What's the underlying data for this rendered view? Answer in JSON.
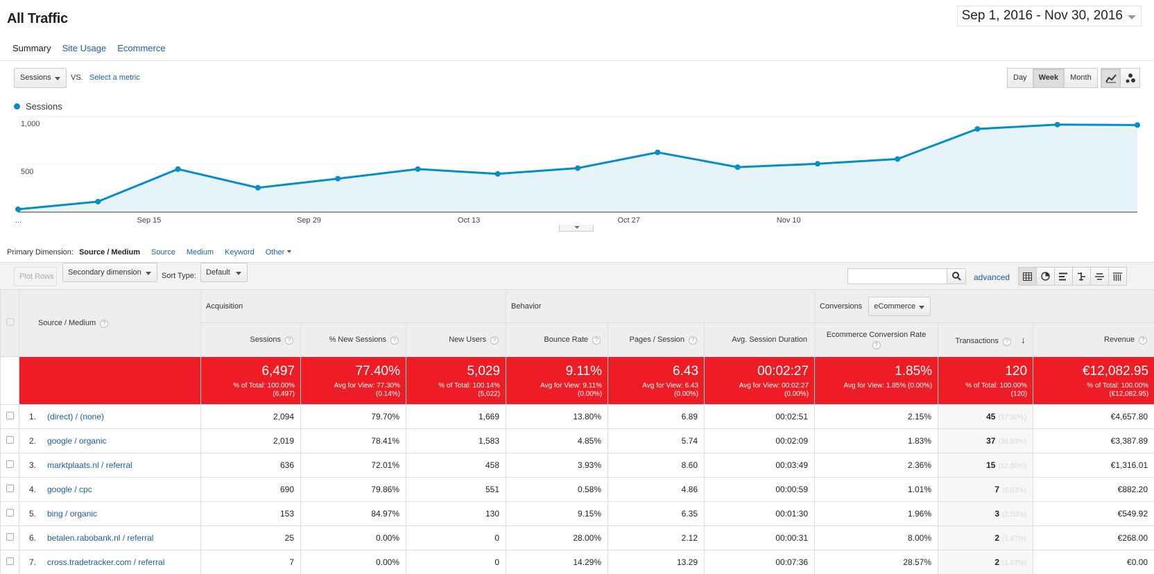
{
  "page": {
    "title": "All Traffic",
    "date_range": "Sep 1, 2016 - Nov 30, 2016"
  },
  "subtabs": [
    "Summary",
    "Site Usage",
    "Ecommerce"
  ],
  "chart_controls": {
    "metric": "Sessions",
    "vs": "VS.",
    "select_metric": "Select a metric",
    "time_buttons": [
      "Day",
      "Week",
      "Month"
    ],
    "active_time": "Week",
    "view_icons": [
      "line-chart-icon",
      "motion-chart-icon"
    ]
  },
  "chart_data": {
    "type": "area",
    "series": [
      {
        "name": "Sessions",
        "color": "#058dc7",
        "values": [
          30,
          110,
          450,
          255,
          350,
          450,
          400,
          460,
          625,
          470,
          505,
          555,
          870,
          915,
          910
        ]
      }
    ],
    "y_ticks": [
      "1,000",
      "500"
    ],
    "ylim": [
      0,
      1000
    ],
    "x_ticks": [
      "...",
      "Sep 15",
      "Sep 29",
      "Oct 13",
      "Oct 27",
      "Nov 10"
    ],
    "legend": "top-left",
    "grid": true
  },
  "primary_dimension": {
    "label": "Primary Dimension:",
    "current": "Source / Medium",
    "options": [
      "Source",
      "Medium",
      "Keyword"
    ],
    "other": "Other"
  },
  "toolbar": {
    "plot_rows": "Plot Rows",
    "secondary_dimension": "Secondary dimension",
    "sort_type_label": "Sort Type:",
    "sort_type": "Default",
    "search_placeholder": "",
    "advanced": "advanced",
    "table_view_icons": [
      "data-table-icon",
      "pie-chart-icon",
      "performance-icon",
      "comparison-icon",
      "term-cloud-icon",
      "pivot-icon"
    ]
  },
  "table": {
    "groups": {
      "dimension": "Source / Medium",
      "acquisition": "Acquisition",
      "behavior": "Behavior",
      "conversions": "Conversions",
      "conversions_select": "eCommerce"
    },
    "columns": [
      "Sessions",
      "% New Sessions",
      "New Users",
      "Bounce Rate",
      "Pages / Session",
      "Avg. Session Duration",
      "Ecommerce Conversion Rate",
      "Transactions",
      "Revenue"
    ],
    "totals": [
      {
        "value": "6,497",
        "sub1": "% of Total: 100.00%",
        "sub2": "(6,497)"
      },
      {
        "value": "77.40%",
        "sub1": "Avg for View: 77.30%",
        "sub2": "(0.14%)"
      },
      {
        "value": "5,029",
        "sub1": "% of Total: 100.14%",
        "sub2": "(5,022)"
      },
      {
        "value": "9.11%",
        "sub1": "Avg for View: 9.11%",
        "sub2": "(0.00%)"
      },
      {
        "value": "6.43",
        "sub1": "Avg for View: 6.43",
        "sub2": "(0.00%)"
      },
      {
        "value": "00:02:27",
        "sub1": "Avg for View: 00:02:27",
        "sub2": "(0.00%)"
      },
      {
        "value": "1.85%",
        "sub1": "Avg for View: 1.85% (0.00%)",
        "sub2": ""
      },
      {
        "value": "120",
        "sub1": "% of Total: 100.00%",
        "sub2": "(120)"
      },
      {
        "value": "€12,082.95",
        "sub1": "% of Total: 100.00%",
        "sub2": "(€12,082.95)"
      }
    ],
    "rows": [
      {
        "idx": "1.",
        "source": "(direct) / (none)",
        "sessions": "2,094",
        "new_sess": "79.70%",
        "new_users": "1,669",
        "bounce": "13.80%",
        "pages": "6.89",
        "duration": "00:02:51",
        "ecr": "2.15%",
        "tx": "45",
        "tx_pct": "(37.50%)",
        "revenue": "€4,657.80"
      },
      {
        "idx": "2.",
        "source": "google / organic",
        "sessions": "2,019",
        "new_sess": "78.41%",
        "new_users": "1,583",
        "bounce": "4.85%",
        "pages": "5.74",
        "duration": "00:02:09",
        "ecr": "1.83%",
        "tx": "37",
        "tx_pct": "(30.83%)",
        "revenue": "€3,387.89"
      },
      {
        "idx": "3.",
        "source": "marktplaats.nl / referral",
        "sessions": "636",
        "new_sess": "72.01%",
        "new_users": "458",
        "bounce": "3.93%",
        "pages": "8.60",
        "duration": "00:03:49",
        "ecr": "2.36%",
        "tx": "15",
        "tx_pct": "(12.50%)",
        "revenue": "€1,316.01"
      },
      {
        "idx": "4.",
        "source": "google / cpc",
        "sessions": "690",
        "new_sess": "79.86%",
        "new_users": "551",
        "bounce": "0.58%",
        "pages": "4.86",
        "duration": "00:00:59",
        "ecr": "1.01%",
        "tx": "7",
        "tx_pct": "(5.83%)",
        "revenue": "€882.20"
      },
      {
        "idx": "5.",
        "source": "bing / organic",
        "sessions": "153",
        "new_sess": "84.97%",
        "new_users": "130",
        "bounce": "9.15%",
        "pages": "6.35",
        "duration": "00:01:30",
        "ecr": "1.96%",
        "tx": "3",
        "tx_pct": "(2.50%)",
        "revenue": "€549.92"
      },
      {
        "idx": "6.",
        "source": "betalen.rabobank.nl / referral",
        "sessions": "25",
        "new_sess": "0.00%",
        "new_users": "0",
        "bounce": "28.00%",
        "pages": "2.12",
        "duration": "00:00:31",
        "ecr": "8.00%",
        "tx": "2",
        "tx_pct": "(1.67%)",
        "revenue": "€268.00"
      },
      {
        "idx": "7.",
        "source": "cross.tradetracker.com / referral",
        "sessions": "7",
        "new_sess": "0.00%",
        "new_users": "0",
        "bounce": "14.29%",
        "pages": "13.29",
        "duration": "00:07:36",
        "ecr": "28.57%",
        "tx": "2",
        "tx_pct": "(1.67%)",
        "revenue": "€0.00"
      }
    ]
  }
}
